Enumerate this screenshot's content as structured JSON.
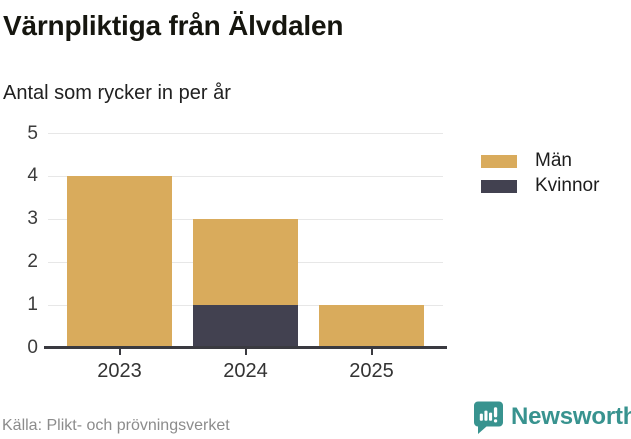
{
  "header": {
    "title": "Värnpliktiga från Älvdalen",
    "subtitle": "Antal som rycker in per år"
  },
  "chart_data": {
    "type": "bar",
    "stacked": true,
    "title": "Värnpliktiga från Älvdalen",
    "subtitle": "Antal som rycker in per år",
    "categories": [
      "2023",
      "2024",
      "2025"
    ],
    "series": [
      {
        "name": "Män",
        "color": "#d9ab5c",
        "values": [
          4,
          2,
          1
        ]
      },
      {
        "name": "Kvinnor",
        "color": "#424150",
        "values": [
          0,
          1,
          0
        ]
      }
    ],
    "stack_order_bottom_up": [
      "Kvinnor",
      "Män"
    ],
    "totals": [
      4,
      3,
      1
    ],
    "xlabel": "",
    "ylabel": "",
    "ylim": [
      0,
      5
    ],
    "yticks": [
      0,
      1,
      2,
      3,
      4,
      5
    ],
    "grid": true,
    "gridline_color": "#e7e7e7",
    "axis_color": "#3a3a40",
    "legend_position": "right"
  },
  "legend": {
    "items": [
      {
        "label": "Män",
        "color": "#d9ab5c"
      },
      {
        "label": "Kvinnor",
        "color": "#424150"
      }
    ]
  },
  "footer": {
    "source": "Källa: Plikt- och prövningsverket",
    "brand": "Newsworthy",
    "brand_color": "#38938f",
    "logo_icon": "bar-chart-speech-bubble-icon"
  }
}
